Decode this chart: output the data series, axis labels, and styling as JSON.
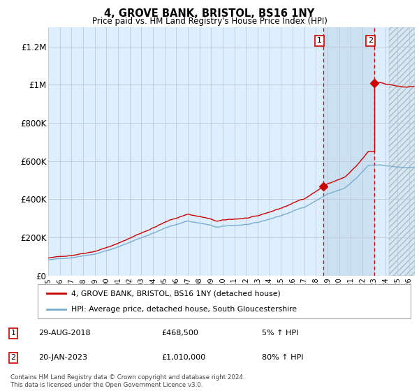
{
  "title": "4, GROVE BANK, BRISTOL, BS16 1NY",
  "subtitle": "Price paid vs. HM Land Registry's House Price Index (HPI)",
  "xlim_start": 1995.0,
  "xlim_end": 2026.5,
  "ylim": [
    0,
    1300000
  ],
  "yticks": [
    0,
    200000,
    400000,
    600000,
    800000,
    1000000,
    1200000
  ],
  "ytick_labels": [
    "£0",
    "£200K",
    "£400K",
    "£600K",
    "£800K",
    "£1M",
    "£1.2M"
  ],
  "xticks": [
    1995,
    1996,
    1997,
    1998,
    1999,
    2000,
    2001,
    2002,
    2003,
    2004,
    2005,
    2006,
    2007,
    2008,
    2009,
    2010,
    2011,
    2012,
    2013,
    2014,
    2015,
    2016,
    2017,
    2018,
    2019,
    2020,
    2021,
    2022,
    2023,
    2024,
    2025,
    2026
  ],
  "sale1_x": 2018.66,
  "sale1_y": 468500,
  "sale2_x": 2023.05,
  "sale2_y": 1010000,
  "legend_line1": "4, GROVE BANK, BRISTOL, BS16 1NY (detached house)",
  "legend_line2": "HPI: Average price, detached house, South Gloucestershire",
  "footer": "Contains HM Land Registry data © Crown copyright and database right 2024.\nThis data is licensed under the Open Government Licence v3.0.",
  "hpi_color": "#7aadcf",
  "sale_color": "#cc0000",
  "bg_color": "#ddeeff",
  "between_shade": "#c8dff0",
  "future_shade": "#d8e8f0",
  "sale_vline_color": "#cc0000",
  "grid_color": "#c0c8d8"
}
